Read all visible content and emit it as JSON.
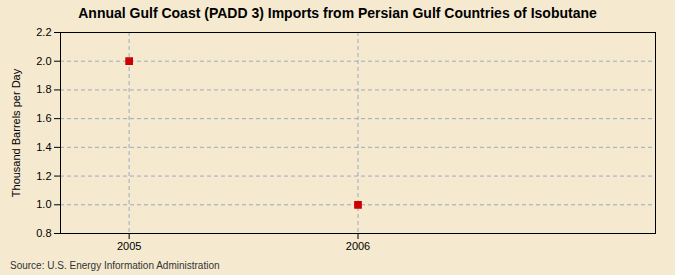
{
  "chart_data": {
    "type": "scatter",
    "title": "Annual Gulf Coast (PADD 3) Imports from Persian Gulf Countries of Isobutane",
    "ylabel": "Thousand Barrels per Day",
    "source": "Source: U.S. Energy Information Administration",
    "x": [
      2005,
      2006
    ],
    "values": [
      2.0,
      1.0
    ],
    "color": "#cc0000",
    "marker": "square",
    "xlim": [
      2004.7,
      2007.3
    ],
    "xticks": [
      2005,
      2006
    ],
    "ylim": [
      0.8,
      2.2
    ],
    "yticks": [
      0.8,
      {
        "value": 1.0,
        "label": "1.0"
      },
      1.2,
      1.4,
      1.6,
      1.8,
      {
        "value": 2.0,
        "label": "2.0"
      },
      2.2
    ],
    "grid": true
  }
}
